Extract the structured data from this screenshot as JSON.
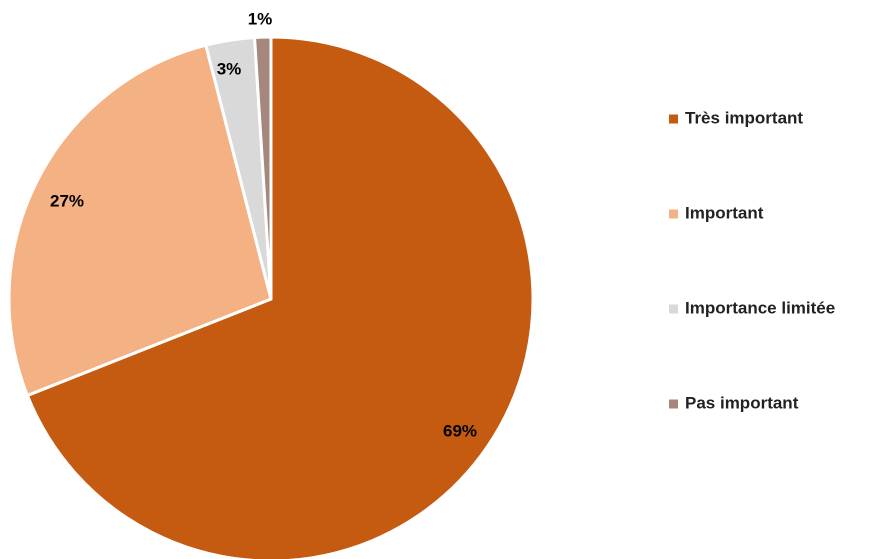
{
  "chart_data": {
    "type": "pie",
    "start_angle": "12 o'clock",
    "direction": "clockwise",
    "legend_position": "right",
    "slices": [
      {
        "label": "Très important",
        "value": 69,
        "display": "69%",
        "color": "#C55A11"
      },
      {
        "label": "Important",
        "value": 27,
        "display": "27%",
        "color": "#F4B183"
      },
      {
        "label": "Importance limitée",
        "value": 3,
        "display": "3%",
        "color": "#D9D9D9"
      },
      {
        "label": "Pas important",
        "value": 1,
        "display": "1%",
        "color": "#A5877E"
      }
    ]
  }
}
